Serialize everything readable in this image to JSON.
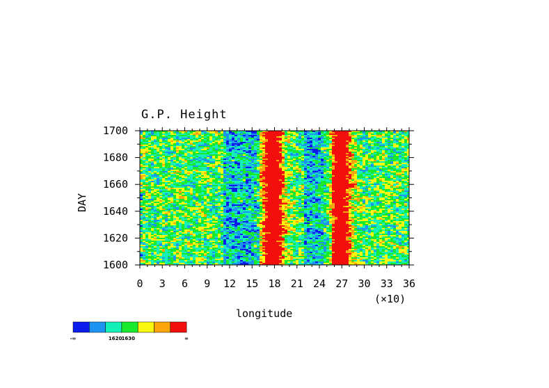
{
  "chart_data": {
    "type": "heatmap",
    "title": "G.P. Height",
    "xlabel": "longitude",
    "x_multiplier": "(×10)",
    "ylabel": "DAY",
    "x_ticks": [
      "0",
      "3",
      "6",
      "9",
      "12",
      "15",
      "18",
      "21",
      "24",
      "27",
      "30",
      "33",
      "36"
    ],
    "y_ticks": [
      "1600",
      "1620",
      "1640",
      "1660",
      "1680",
      "1700"
    ],
    "xlim": [
      0,
      36
    ],
    "ylim": [
      1600,
      1700
    ],
    "colorbar": {
      "colors": [
        "#0b1dec",
        "#1d93f2",
        "#15f0b9",
        "#18e92c",
        "#f8f80e",
        "#fba50c",
        "#f40f0f"
      ],
      "labels": [
        "-∞",
        "1620",
        "1630",
        "∞"
      ]
    },
    "bands": [
      {
        "center": 17.8,
        "width": 1.4,
        "strength": 1.0
      },
      {
        "center": 26.8,
        "width": 1.4,
        "strength": 1.0
      }
    ]
  }
}
